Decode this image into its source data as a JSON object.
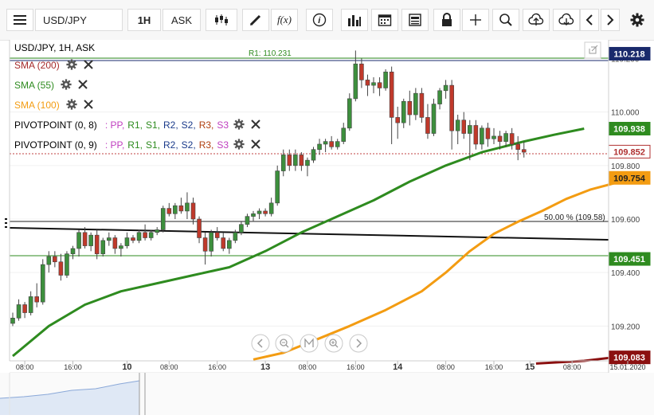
{
  "toolbar": {
    "symbol": "USD/JPY",
    "timeframe": "1H",
    "price_type": "ASK",
    "fx_label": "f(x)"
  },
  "chart_title": "USD/JPY, 1H, ASK",
  "indicators": [
    {
      "label": "SMA (200)",
      "color": "#a52a2a"
    },
    {
      "label": "SMA (55)",
      "color": "#2e8b1f"
    },
    {
      "label": "SMA (100)",
      "color": "#f39c12"
    }
  ],
  "pivots": [
    {
      "label": "PIVOTPOINT (0, 8)"
    },
    {
      "label": "PIVOTPOINT (0, 9)"
    }
  ],
  "pivot_parts": [
    {
      "text": ": PP,",
      "color": "#c040c0"
    },
    {
      "text": "R1,",
      "color": "#2e8b1f"
    },
    {
      "text": "S1,",
      "color": "#2e8b1f"
    },
    {
      "text": "R2,",
      "color": "#1a3a8a"
    },
    {
      "text": "S2,",
      "color": "#1a3a8a"
    },
    {
      "text": "R3,",
      "color": "#b04010"
    },
    {
      "text": "S3",
      "color": "#c040c0"
    }
  ],
  "price_labels": [
    {
      "text": "110.218",
      "bg": "#1a2a6c",
      "fg": "#ffffff",
      "value": 110.218
    },
    {
      "text": "109.938",
      "bg": "#2e8b1f",
      "fg": "#ffffff",
      "value": 109.938
    },
    {
      "text": "109.852",
      "bg": "#ffffff",
      "fg": "#b03030",
      "value": 109.852
    },
    {
      "text": "109.754",
      "bg": "#f39c12",
      "fg": "#222222",
      "value": 109.754
    },
    {
      "text": "109.451",
      "bg": "#2e8b1f",
      "fg": "#ffffff",
      "value": 109.451
    },
    {
      "text": "109.083",
      "bg": "#8b1010",
      "fg": "#ffffff",
      "value": 109.083
    }
  ],
  "annotations": {
    "r1_label": "R1: 110.231",
    "fib_label": "50.00 % (109.58)"
  },
  "chart_data": {
    "type": "candlestick",
    "title": "USD/JPY, 1H, ASK",
    "ylim": [
      109.07,
      110.27
    ],
    "y_ticks": [
      "110.200",
      "110.000",
      "109.800",
      "109.600",
      "109.400",
      "109.200"
    ],
    "x_tick_labels": [
      "08:00",
      "16:00",
      "10",
      "08:00",
      "16:00",
      "13",
      "08:00",
      "16:00",
      "14",
      "08:00",
      "16:00",
      "15",
      "08:00",
      "15.01.2020"
    ],
    "candles": [
      [
        109.21,
        109.25,
        109.2,
        109.23
      ],
      [
        109.23,
        109.3,
        109.22,
        109.28
      ],
      [
        109.28,
        109.29,
        109.23,
        109.25
      ],
      [
        109.25,
        109.33,
        109.24,
        109.31
      ],
      [
        109.31,
        109.36,
        109.27,
        109.29
      ],
      [
        109.29,
        109.45,
        109.28,
        109.43
      ],
      [
        109.43,
        109.48,
        109.4,
        109.46
      ],
      [
        109.46,
        109.48,
        109.42,
        109.44
      ],
      [
        109.44,
        109.47,
        109.37,
        109.39
      ],
      [
        109.39,
        109.48,
        109.38,
        109.47
      ],
      [
        109.47,
        109.5,
        109.45,
        109.49
      ],
      [
        109.49,
        109.56,
        109.46,
        109.55
      ],
      [
        109.55,
        109.57,
        109.49,
        109.5
      ],
      [
        109.5,
        109.55,
        109.48,
        109.54
      ],
      [
        109.54,
        109.56,
        109.45,
        109.47
      ],
      [
        109.47,
        109.53,
        109.46,
        109.52
      ],
      [
        109.52,
        109.55,
        109.5,
        109.53
      ],
      [
        109.53,
        109.54,
        109.47,
        109.49
      ],
      [
        109.49,
        109.51,
        109.46,
        109.5
      ],
      [
        109.5,
        109.55,
        109.49,
        109.53
      ],
      [
        109.53,
        109.54,
        109.51,
        109.52
      ],
      [
        109.52,
        109.56,
        109.51,
        109.55
      ],
      [
        109.55,
        109.58,
        109.52,
        109.53
      ],
      [
        109.53,
        109.56,
        109.52,
        109.55
      ],
      [
        109.55,
        109.57,
        109.54,
        109.56
      ],
      [
        109.56,
        109.65,
        109.55,
        109.64
      ],
      [
        109.64,
        109.66,
        109.61,
        109.62
      ],
      [
        109.62,
        109.66,
        109.6,
        109.65
      ],
      [
        109.65,
        109.68,
        109.62,
        109.63
      ],
      [
        109.63,
        109.7,
        109.6,
        109.66
      ],
      [
        109.66,
        109.68,
        109.58,
        109.6
      ],
      [
        109.6,
        109.61,
        109.51,
        109.53
      ],
      [
        109.53,
        109.55,
        109.43,
        109.48
      ],
      [
        109.48,
        109.56,
        109.46,
        109.55
      ],
      [
        109.55,
        109.57,
        109.52,
        109.53
      ],
      [
        109.53,
        109.55,
        109.48,
        109.49
      ],
      [
        109.49,
        109.53,
        109.47,
        109.52
      ],
      [
        109.52,
        109.56,
        109.51,
        109.55
      ],
      [
        109.55,
        109.59,
        109.54,
        109.58
      ],
      [
        109.58,
        109.62,
        109.57,
        109.61
      ],
      [
        109.61,
        109.63,
        109.59,
        109.62
      ],
      [
        109.62,
        109.64,
        109.6,
        109.63
      ],
      [
        109.63,
        109.64,
        109.61,
        109.62
      ],
      [
        109.62,
        109.68,
        109.61,
        109.66
      ],
      [
        109.66,
        109.8,
        109.65,
        109.78
      ],
      [
        109.78,
        109.86,
        109.76,
        109.84
      ],
      [
        109.84,
        109.86,
        109.78,
        109.8
      ],
      [
        109.8,
        109.86,
        109.78,
        109.84
      ],
      [
        109.84,
        109.85,
        109.78,
        109.8
      ],
      [
        109.8,
        109.83,
        109.76,
        109.82
      ],
      [
        109.82,
        109.87,
        109.81,
        109.86
      ],
      [
        109.86,
        109.9,
        109.84,
        109.88
      ],
      [
        109.88,
        109.9,
        109.85,
        109.89
      ],
      [
        109.89,
        109.91,
        109.86,
        109.87
      ],
      [
        109.87,
        109.9,
        109.86,
        109.89
      ],
      [
        109.89,
        109.96,
        109.88,
        109.94
      ],
      [
        109.94,
        110.07,
        109.93,
        110.05
      ],
      [
        110.05,
        110.23,
        110.04,
        110.18
      ],
      [
        110.18,
        110.2,
        110.09,
        110.12
      ],
      [
        110.12,
        110.14,
        110.06,
        110.1
      ],
      [
        110.1,
        110.13,
        110.07,
        110.11
      ],
      [
        110.11,
        110.13,
        110.06,
        110.09
      ],
      [
        110.09,
        110.16,
        110.08,
        110.15
      ],
      [
        110.15,
        110.17,
        109.88,
        109.98
      ],
      [
        109.98,
        110.02,
        109.9,
        109.96
      ],
      [
        109.96,
        110.05,
        109.94,
        110.04
      ],
      [
        110.04,
        110.08,
        109.95,
        109.99
      ],
      [
        109.99,
        110.09,
        109.97,
        110.07
      ],
      [
        110.07,
        110.09,
        109.96,
        109.98
      ],
      [
        109.98,
        110.03,
        109.9,
        109.92
      ],
      [
        109.92,
        110.05,
        109.91,
        110.03
      ],
      [
        110.03,
        110.09,
        110.01,
        110.08
      ],
      [
        110.08,
        110.12,
        110.05,
        110.1
      ],
      [
        110.1,
        110.12,
        109.86,
        109.93
      ],
      [
        109.93,
        109.99,
        109.88,
        109.97
      ],
      [
        109.97,
        110,
        109.9,
        109.92
      ],
      [
        109.92,
        109.97,
        109.82,
        109.95
      ],
      [
        109.95,
        109.97,
        109.86,
        109.88
      ],
      [
        109.88,
        109.95,
        109.86,
        109.94
      ],
      [
        109.94,
        109.96,
        109.87,
        109.9
      ],
      [
        109.9,
        109.94,
        109.88,
        109.91
      ],
      [
        109.91,
        109.93,
        109.86,
        109.89
      ],
      [
        109.89,
        109.93,
        109.87,
        109.92
      ],
      [
        109.92,
        109.94,
        109.86,
        109.88
      ],
      [
        109.88,
        109.91,
        109.82,
        109.86
      ],
      [
        109.86,
        109.89,
        109.83,
        109.85
      ]
    ],
    "series": [
      {
        "name": "SMA (55)",
        "color": "#2e8b1f",
        "points": [
          [
            0,
            109.088
          ],
          [
            6,
            109.2
          ],
          [
            12,
            109.28
          ],
          [
            18,
            109.33
          ],
          [
            24,
            109.36
          ],
          [
            30,
            109.39
          ],
          [
            36,
            109.42
          ],
          [
            42,
            109.48
          ],
          [
            48,
            109.55
          ],
          [
            54,
            109.61
          ],
          [
            60,
            109.67
          ],
          [
            66,
            109.74
          ],
          [
            72,
            109.8
          ],
          [
            78,
            109.85
          ],
          [
            85,
            109.89
          ],
          [
            90,
            109.915
          ],
          [
            95,
            109.938
          ]
        ]
      },
      {
        "name": "SMA (100)",
        "color": "#f39c12",
        "points": [
          [
            40,
            109.075
          ],
          [
            45,
            109.1
          ],
          [
            50,
            109.145
          ],
          [
            56,
            109.2
          ],
          [
            62,
            109.26
          ],
          [
            68,
            109.33
          ],
          [
            72,
            109.4
          ],
          [
            76,
            109.48
          ],
          [
            80,
            109.545
          ],
          [
            84,
            109.59
          ],
          [
            88,
            109.63
          ],
          [
            92,
            109.675
          ],
          [
            96,
            109.71
          ],
          [
            100,
            109.734
          ],
          [
            104,
            109.754
          ]
        ]
      },
      {
        "name": "SMA (200)",
        "color": "#8b1010",
        "points": [
          [
            87,
            109.06
          ],
          [
            95,
            109.07
          ],
          [
            100,
            109.083
          ]
        ]
      }
    ]
  }
}
